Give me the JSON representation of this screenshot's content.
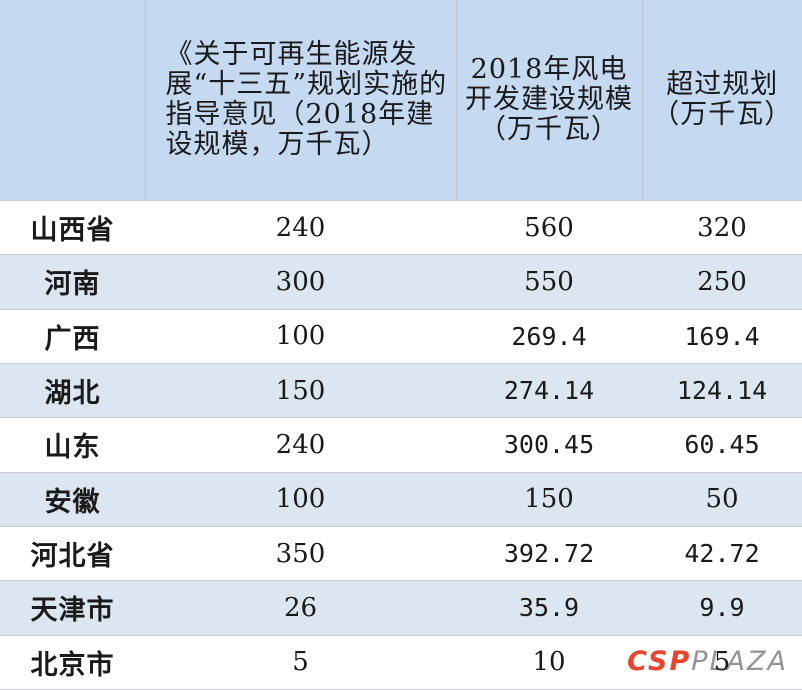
{
  "table": {
    "headers": [
      "",
      "《关于可再生能源发展“十三五”规划实施的指导意见（2018年建设规模，万千瓦）",
      "2018年风电开发建设规模（万千瓦）",
      "超过规划（万千瓦）"
    ],
    "rows": [
      {
        "province": "山西省",
        "plan": "240",
        "build": "560",
        "excess": "320"
      },
      {
        "province": "河南",
        "plan": "300",
        "build": "550",
        "excess": "250"
      },
      {
        "province": "广西",
        "plan": "100",
        "build": "269.4",
        "excess": "169.4"
      },
      {
        "province": "湖北",
        "plan": "150",
        "build": "274.14",
        "excess": "124.14"
      },
      {
        "province": "山东",
        "plan": "240",
        "build": "300.45",
        "excess": "60.45"
      },
      {
        "province": "安徽",
        "plan": "100",
        "build": "150",
        "excess": "50"
      },
      {
        "province": "河北省",
        "plan": "350",
        "build": "392.72",
        "excess": "42.72"
      },
      {
        "province": "天津市",
        "plan": "26",
        "build": "35.9",
        "excess": "9.9"
      },
      {
        "province": "北京市",
        "plan": "5",
        "build": "10",
        "excess": "5"
      }
    ]
  },
  "watermark": {
    "part1": "CSP",
    "part2": "PLAZA"
  },
  "colors": {
    "header_bg": "#c5d9f1",
    "alt_row_bg": "#dce6f1",
    "logo_red": "#e8452c"
  }
}
